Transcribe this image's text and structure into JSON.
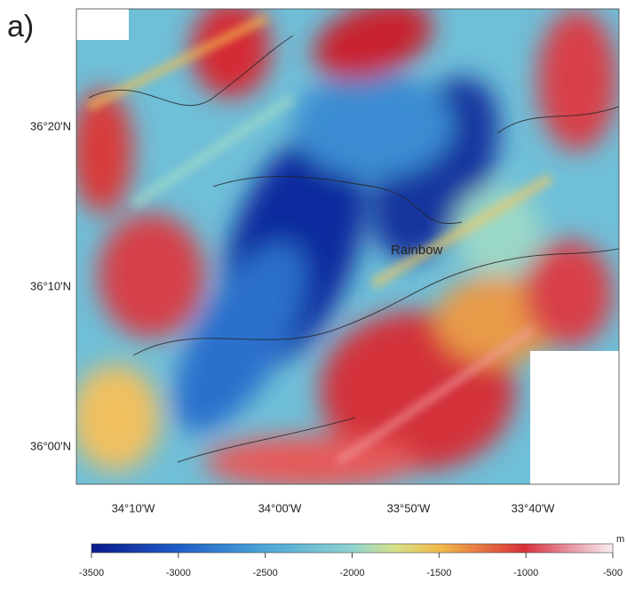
{
  "panel_label": "a)",
  "latitude_labels": [
    "36°20'N",
    "36°10'N",
    "36°00'N"
  ],
  "longitude_labels": [
    "34°10'W",
    "34°00'W",
    "33°50'W",
    "33°40'W"
  ],
  "annotation": "Rainbow",
  "colorbar": {
    "unit": "m",
    "lim": [
      -3500,
      -500
    ],
    "ticks": [
      -3500,
      -3000,
      -2500,
      -2000,
      -1500,
      -1000,
      -500
    ]
  }
}
